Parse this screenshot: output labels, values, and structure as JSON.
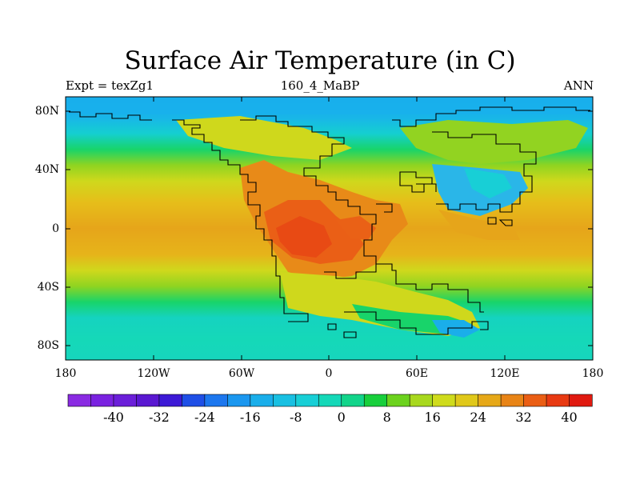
{
  "title": "Surface Air Temperature (in C)",
  "subtitle_left": "Expt = texZg1",
  "subtitle_center": "160_4_MaBP",
  "subtitle_right": "ANN",
  "lat_labels": [
    "80N",
    "40N",
    "0",
    "40S",
    "80S"
  ],
  "lon_labels": [
    "180",
    "120W",
    "60W",
    "0",
    "60E",
    "120E",
    "180"
  ],
  "colorbar": {
    "labels": [
      "-40",
      "-32",
      "-24",
      "-16",
      "-8",
      "0",
      "8",
      "16",
      "24",
      "32",
      "40"
    ],
    "colors": [
      "#8a2be2",
      "#7a22e0",
      "#6b1fd9",
      "#5a18d1",
      "#3d1ad6",
      "#1f4fe6",
      "#1d77ee",
      "#1b97ef",
      "#1aaeea",
      "#19c0e2",
      "#18cfd6",
      "#15d8b8",
      "#12d48a",
      "#18cf3c",
      "#6cd21e",
      "#a8d81e",
      "#cfdb1c",
      "#e0c81a",
      "#e6a818",
      "#e88416",
      "#ea5e14",
      "#e83a12",
      "#e01a10"
    ]
  },
  "colors": {
    "polar": "#18b6e8",
    "subpolar": "#15d8b8",
    "midlat": "#a9d62a",
    "subtropic": "#e6c21a",
    "tropic": "#e6a51a",
    "land_hot": "#ea7a18",
    "land_hottest": "#e85a18",
    "cold_land": "#1aa8ef"
  }
}
